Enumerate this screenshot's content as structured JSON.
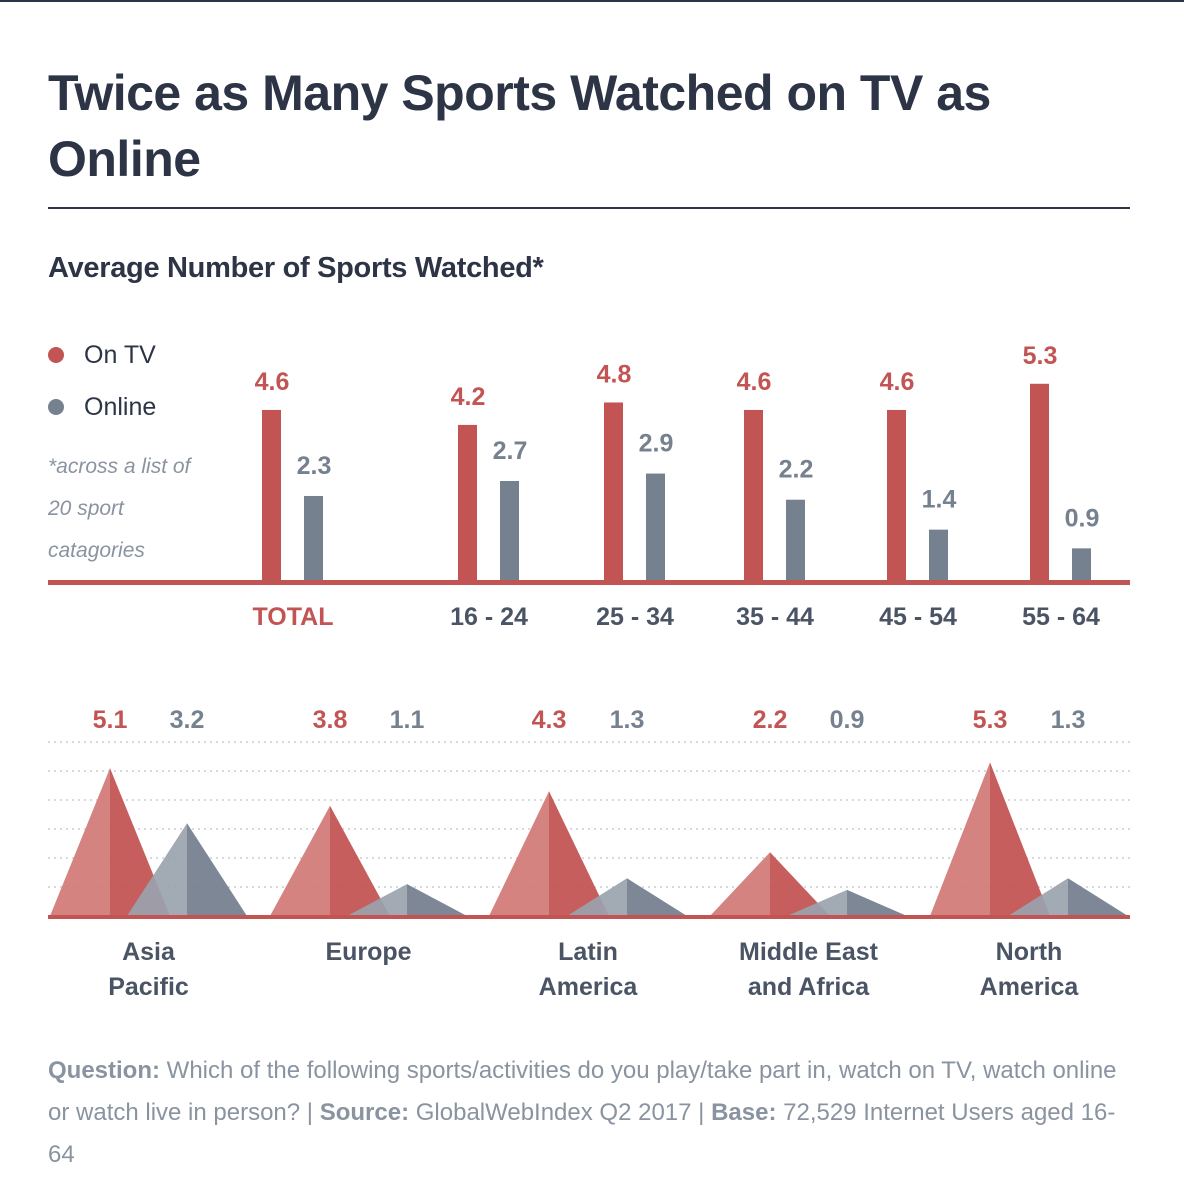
{
  "title": "Twice as Many Sports Watched on TV as Online",
  "colors": {
    "tv": "#c25553",
    "online": "#76818f",
    "text": "#2c3446",
    "muted": "#8a93a0"
  },
  "chart_data": [
    {
      "type": "bar",
      "title": "Average Number of Sports Watched*",
      "legend": [
        "On TV",
        "Online"
      ],
      "legend_position": "left",
      "footnote": "*across a list of 20 sport catagories",
      "categories": [
        "TOTAL",
        "16 - 24",
        "25 - 34",
        "35 - 44",
        "45 - 54",
        "55 - 64"
      ],
      "series": [
        {
          "name": "On TV",
          "values": [
            4.6,
            4.2,
            4.8,
            4.6,
            4.6,
            5.3
          ]
        },
        {
          "name": "Online",
          "values": [
            2.3,
            2.7,
            2.9,
            2.2,
            1.4,
            0.9
          ]
        }
      ]
    },
    {
      "type": "area",
      "categories": [
        "Asia Pacific",
        "Europe",
        "Latin America",
        "Middle East and Africa",
        "North America"
      ],
      "series": [
        {
          "name": "On TV",
          "values": [
            5.1,
            3.8,
            4.3,
            2.2,
            5.3
          ]
        },
        {
          "name": "Online",
          "values": [
            3.2,
            1.1,
            1.3,
            0.9,
            1.3
          ]
        }
      ],
      "grid": true
    }
  ],
  "caption": {
    "question_label": "Question:",
    "question_text": "Which of the following sports/activities do you play/take part in, watch on TV, watch online or watch live in person?",
    "sep1": " | ",
    "source_label": "Source:",
    "source_text": "GlobalWebIndex Q2 2017",
    "sep2": " | ",
    "base_label": "Base:",
    "base_text": "72,529 Internet Users aged 16-64"
  }
}
